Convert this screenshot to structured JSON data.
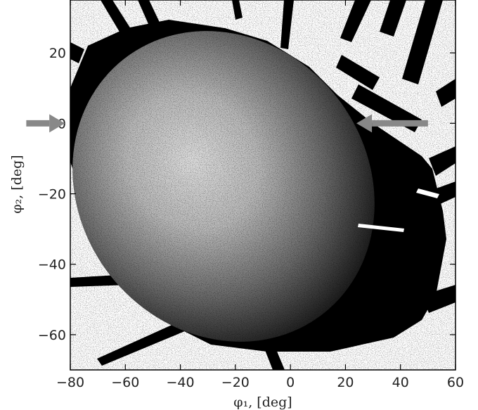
{
  "chart_data": {
    "type": "heatmap",
    "title": "",
    "xlabel": "φ₁, [deg]",
    "ylabel": "φ₂, [deg]",
    "xlim": [
      -80,
      60
    ],
    "ylim": [
      -70,
      35
    ],
    "x_ticks": [
      -80,
      -60,
      -40,
      -20,
      0,
      20,
      40,
      60
    ],
    "y_ticks": [
      -60,
      -40,
      -20,
      0,
      20
    ],
    "x_tick_labels": [
      "−80",
      "−60",
      "−40",
      "−20",
      "0",
      "20",
      "40",
      "60"
    ],
    "y_tick_labels": [
      "−60",
      "−40",
      "−20",
      "0",
      "20"
    ],
    "grid": false,
    "colormap": "grayscale density",
    "annotations": [
      {
        "type": "arrow",
        "direction": "right",
        "y": 0,
        "x_from": -96,
        "x_to": -82
      },
      {
        "type": "arrow",
        "direction": "left",
        "y": 0,
        "x_from": 50,
        "x_to": 24
      }
    ],
    "colors": {
      "dense": "#e8e8e8",
      "sparse": "#000000",
      "arrow": "#888888",
      "axes": "#000000"
    }
  }
}
